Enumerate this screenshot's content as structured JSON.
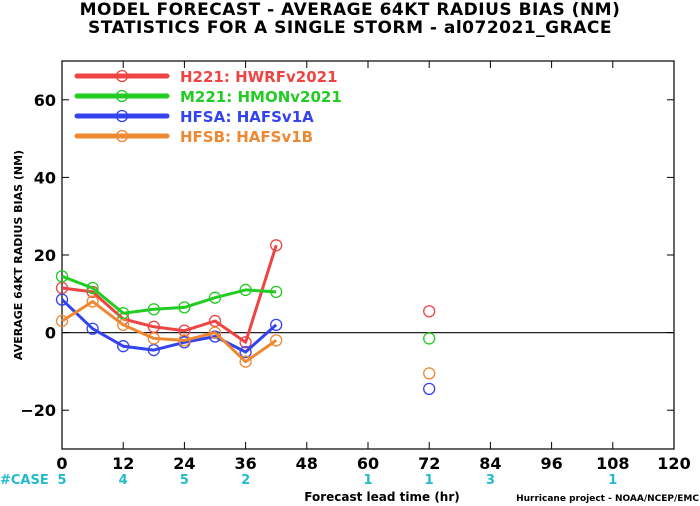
{
  "chart_data": {
    "type": "line",
    "title": "MODEL FORECAST - AVERAGE 64KT RADIUS BIAS (NM)",
    "subtitle": "STATISTICS FOR A SINGLE STORM - al072021_GRACE",
    "xlabel": "Forecast lead time (hr)",
    "ylabel": "AVERAGE 64KT RADIUS BIAS (NM)",
    "xlim": [
      0,
      120
    ],
    "ylim": [
      -30,
      70
    ],
    "x_ticks": [
      0,
      12,
      24,
      36,
      48,
      60,
      72,
      84,
      96,
      108,
      120
    ],
    "y_ticks": [
      -20,
      0,
      20,
      40,
      60
    ],
    "grid": false,
    "zero_line": true,
    "legend_position": "top-left",
    "series": [
      {
        "name": "H221: HWRFv2021",
        "color": "#ee4444",
        "x": [
          0,
          6,
          12,
          18,
          24,
          30,
          36,
          42
        ],
        "values": [
          11.5,
          10.5,
          3.5,
          1.5,
          0.5,
          3.0,
          -2.5,
          22.5
        ],
        "extra_points": [
          {
            "x": 72,
            "y": 5.5
          }
        ]
      },
      {
        "name": "M221: HMONv2021",
        "color": "#22cc22",
        "x": [
          0,
          6,
          12,
          18,
          24,
          30,
          36,
          42
        ],
        "values": [
          14.5,
          11.5,
          5.0,
          6.0,
          6.5,
          9.0,
          11.0,
          10.5
        ],
        "extra_points": [
          {
            "x": 72,
            "y": -1.5
          }
        ]
      },
      {
        "name": "HFSA: HAFSv1A",
        "color": "#3344ee",
        "x": [
          0,
          6,
          12,
          18,
          24,
          30,
          36,
          42
        ],
        "values": [
          8.5,
          1.0,
          -3.5,
          -4.5,
          -2.5,
          -1.0,
          -5.0,
          2.0
        ],
        "extra_points": [
          {
            "x": 72,
            "y": -14.5
          }
        ]
      },
      {
        "name": "HFSB: HAFSv1B",
        "color": "#ee8833",
        "x": [
          0,
          6,
          12,
          18,
          24,
          30,
          36,
          42
        ],
        "values": [
          3.0,
          8.0,
          2.0,
          -1.5,
          -2.0,
          0.0,
          -7.5,
          -2.0
        ],
        "extra_points": [
          {
            "x": 72,
            "y": -10.5
          }
        ]
      }
    ],
    "case_counts": {
      "label": "#CASE",
      "color": "#22bbcc",
      "items": [
        {
          "x": 0,
          "count": "5"
        },
        {
          "x": 12,
          "count": "4"
        },
        {
          "x": 24,
          "count": "5"
        },
        {
          "x": 36,
          "count": "2"
        },
        {
          "x": 60,
          "count": "1"
        },
        {
          "x": 72,
          "count": "1"
        },
        {
          "x": 84,
          "count": "3"
        },
        {
          "x": 108,
          "count": "1"
        }
      ]
    },
    "credit": "Hurricane project - NOAA/NCEP/EMC"
  }
}
